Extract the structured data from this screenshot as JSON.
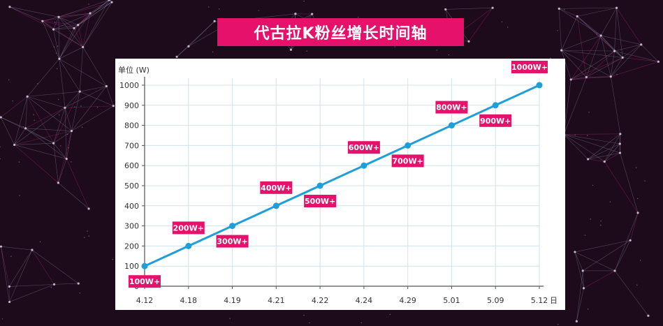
{
  "title": "代古拉K粉丝增长时间轴",
  "colors": {
    "background": "#1d0b1c",
    "banner": "#e5116a",
    "line": "#1e9fd8",
    "label_bg": "#e5116a",
    "grid": "#cfe3ee"
  },
  "chart_data": {
    "type": "line",
    "ylabel": "单位 (W)",
    "xlabel": "日",
    "categories": [
      "4.12",
      "4.18",
      "4.19",
      "4.21",
      "4.22",
      "4.24",
      "4.29",
      "5.01",
      "5.09",
      "5.12"
    ],
    "values": [
      100,
      200,
      300,
      400,
      500,
      600,
      700,
      800,
      900,
      1000
    ],
    "ylim": [
      0,
      1000
    ],
    "yticks": [
      0,
      100,
      200,
      300,
      400,
      500,
      600,
      700,
      800,
      900,
      1000
    ],
    "grid": true,
    "data_labels": [
      {
        "text": "100W+",
        "position": "below"
      },
      {
        "text": "200W+",
        "position": "above"
      },
      {
        "text": "300W+",
        "position": "below"
      },
      {
        "text": "400W+",
        "position": "above"
      },
      {
        "text": "500W+",
        "position": "below"
      },
      {
        "text": "600W+",
        "position": "above"
      },
      {
        "text": "700W+",
        "position": "below"
      },
      {
        "text": "800W+",
        "position": "above"
      },
      {
        "text": "900W+",
        "position": "below"
      },
      {
        "text": "1000W+",
        "position": "above"
      }
    ]
  }
}
